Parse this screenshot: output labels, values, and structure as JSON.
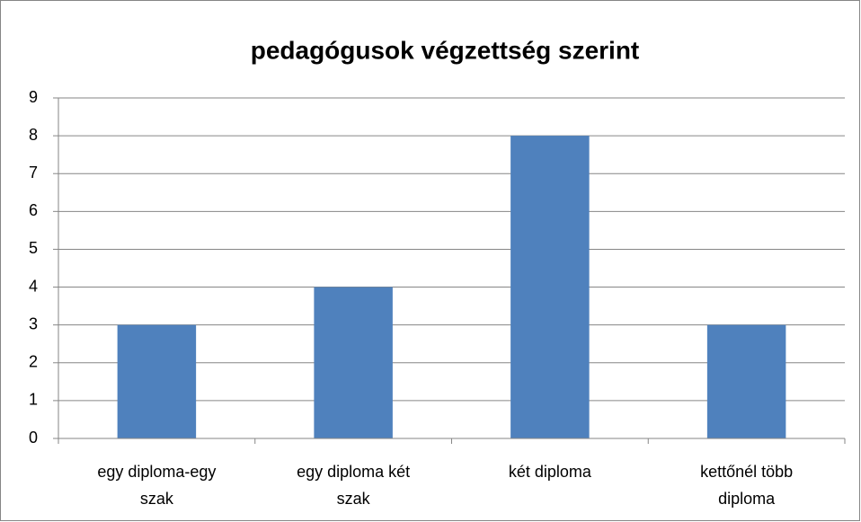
{
  "chart_data": {
    "type": "bar",
    "title": "pedagógusok végzettség szerint",
    "categories": [
      "egy diploma-egy szak",
      "egy diploma két szak",
      "két diploma",
      "kettőnél több diploma"
    ],
    "values": [
      3,
      4,
      8,
      3
    ],
    "color": "#4f81bd",
    "ylim": [
      0,
      9
    ],
    "yticks": [
      0,
      1,
      2,
      3,
      4,
      5,
      6,
      7,
      8,
      9
    ],
    "grid": true
  }
}
